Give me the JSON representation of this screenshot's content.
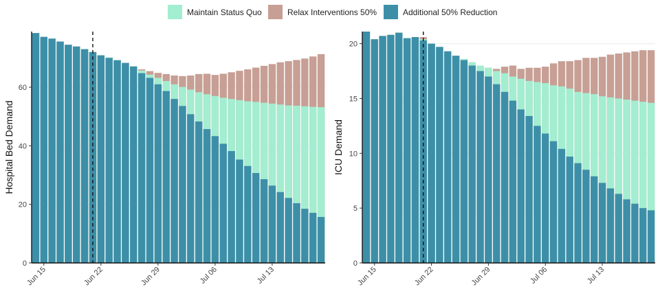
{
  "legend": [
    {
      "key": "status_quo",
      "label": "Maintain Status Quo",
      "color": "#a3edd0"
    },
    {
      "key": "relax",
      "label": "Relax Interventions 50%",
      "color": "#c79f94"
    },
    {
      "key": "reduction",
      "label": "Additional 50% Reduction",
      "color": "#3d8fa8"
    }
  ],
  "chart_data": [
    {
      "type": "bar",
      "stacking": "overlay",
      "ylabel": "Hospital Bed Demand",
      "ylim": [
        0,
        79
      ],
      "yticks": [
        0,
        20,
        40,
        60
      ],
      "x_start": "Jun 14",
      "x_ticks": [
        "Jun 15",
        "Jun 22",
        "Jun 29",
        "Jul 06",
        "Jul 13"
      ],
      "intervention_marker": "Jun 21",
      "grid": "major y lines",
      "series": {
        "reduction": [
          78.5,
          77.2,
          76.6,
          75.6,
          74.5,
          73.9,
          73.0,
          72.0,
          70.9,
          70.0,
          69.2,
          68.3,
          67.1,
          64.8,
          63.2,
          61.0,
          58.7,
          56.0,
          53.6,
          50.8,
          48.3,
          45.7,
          43.3,
          40.7,
          38.2,
          35.3,
          33.1,
          30.7,
          28.6,
          26.4,
          24.2,
          22.2,
          20.4,
          18.5,
          17.1,
          15.7
        ],
        "status_quo": [
          78.5,
          77.2,
          76.6,
          75.6,
          74.5,
          73.9,
          73.0,
          72.0,
          70.9,
          70.2,
          69.3,
          68.3,
          67.1,
          65.7,
          64.3,
          63.2,
          62.1,
          61.0,
          60.1,
          59.2,
          58.3,
          57.6,
          57.0,
          56.4,
          56.0,
          55.6,
          55.2,
          55.0,
          54.7,
          54.4,
          54.1,
          53.8,
          53.7,
          53.5,
          53.3,
          53.2
        ],
        "relax": [
          78.5,
          77.2,
          76.6,
          75.6,
          74.5,
          73.9,
          73.0,
          72.0,
          70.9,
          70.2,
          69.3,
          68.3,
          67.1,
          66.1,
          65.5,
          64.9,
          64.5,
          64.0,
          63.8,
          64.0,
          64.5,
          64.6,
          64.2,
          64.6,
          65.1,
          65.6,
          66.1,
          66.7,
          67.3,
          67.9,
          68.5,
          68.9,
          69.3,
          69.8,
          70.5,
          71.3
        ]
      }
    },
    {
      "type": "bar",
      "stacking": "overlay",
      "ylabel": "ICU Demand",
      "ylim": [
        0,
        21.1
      ],
      "yticks": [
        0,
        5,
        10,
        15,
        20
      ],
      "x_start": "Jun 14",
      "x_ticks": [
        "Jun 15",
        "Jun 22",
        "Jun 29",
        "Jul 06",
        "Jul 13"
      ],
      "intervention_marker": "Jun 21",
      "grid": "major y lines",
      "series": {
        "reduction": [
          21.1,
          20.4,
          20.7,
          20.8,
          21.0,
          20.5,
          20.6,
          20.3,
          20.0,
          19.7,
          19.3,
          18.9,
          18.5,
          18.0,
          17.5,
          17.0,
          16.3,
          15.6,
          14.8,
          14.0,
          13.4,
          12.5,
          11.8,
          11.1,
          10.4,
          9.7,
          9.1,
          8.5,
          7.9,
          7.3,
          6.8,
          6.3,
          5.8,
          5.4,
          5.0,
          4.8
        ],
        "status_quo": [
          21.1,
          20.4,
          20.7,
          20.8,
          21.0,
          20.5,
          20.6,
          20.4,
          20.0,
          19.7,
          19.3,
          18.9,
          18.6,
          18.3,
          18.0,
          17.8,
          17.5,
          17.3,
          17.0,
          16.8,
          16.6,
          16.5,
          16.4,
          16.2,
          16.1,
          15.9,
          15.6,
          15.5,
          15.4,
          15.2,
          15.1,
          15.0,
          14.9,
          14.8,
          14.7,
          14.6
        ],
        "relax": [
          21.1,
          20.4,
          20.7,
          20.8,
          21.0,
          20.5,
          20.6,
          20.6,
          20.0,
          19.7,
          19.3,
          18.9,
          18.6,
          18.3,
          18.0,
          17.8,
          17.7,
          17.9,
          18.0,
          17.7,
          17.8,
          17.8,
          17.9,
          18.2,
          18.4,
          18.4,
          18.5,
          18.7,
          18.7,
          18.8,
          19.0,
          19.1,
          19.2,
          19.3,
          19.4,
          19.4
        ]
      }
    }
  ]
}
